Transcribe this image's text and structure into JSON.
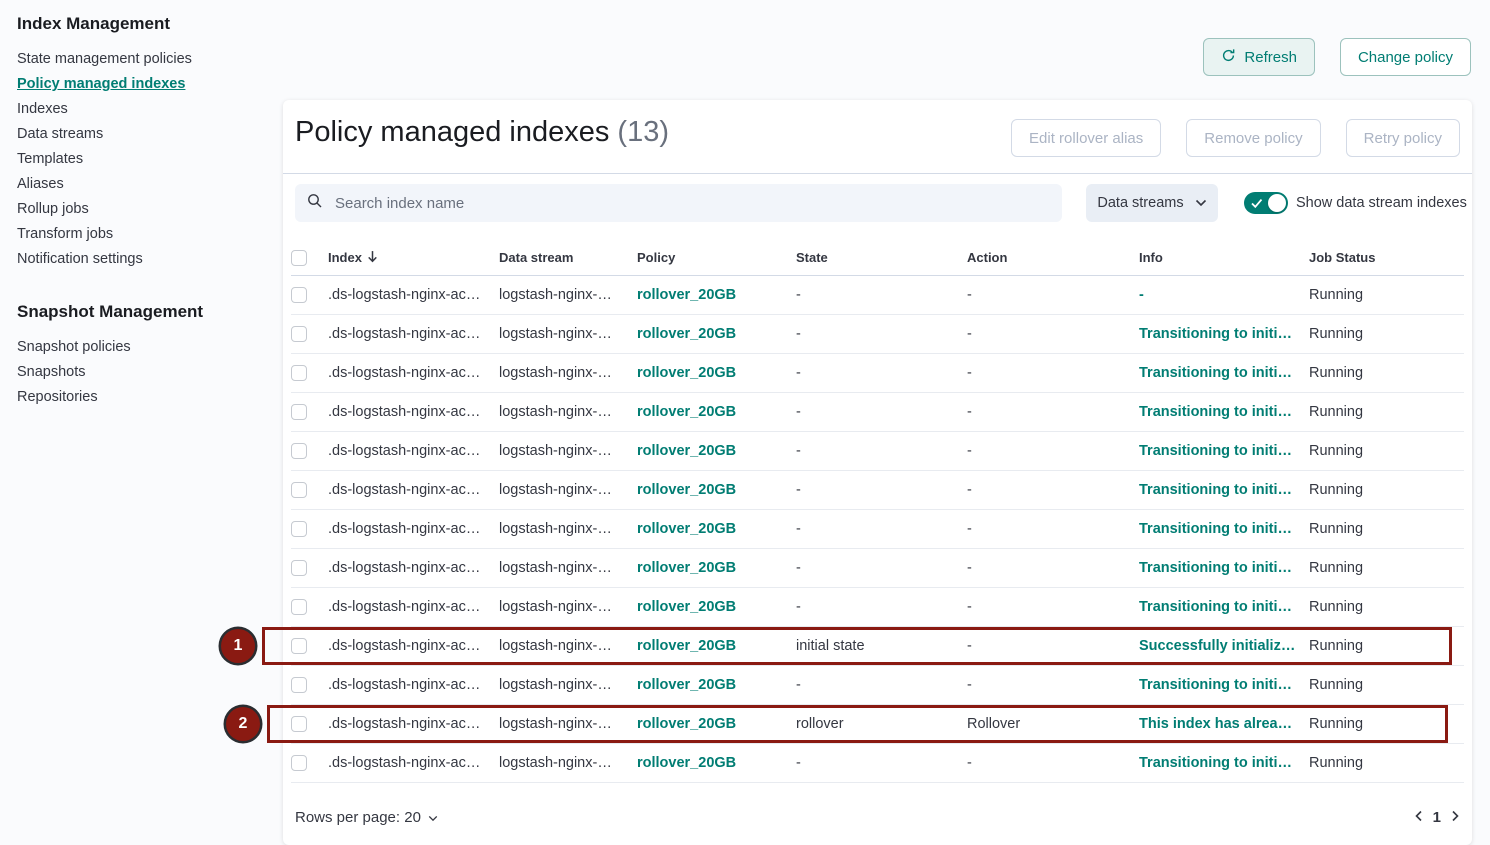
{
  "sidebar": {
    "section1_title": "Index Management",
    "section1_items": [
      "State management policies",
      "Policy managed indexes",
      "Indexes",
      "Data streams",
      "Templates",
      "Aliases",
      "Rollup jobs",
      "Transform jobs",
      "Notification settings"
    ],
    "active_item": "Policy managed indexes",
    "section2_title": "Snapshot Management",
    "section2_items": [
      "Snapshot policies",
      "Snapshots",
      "Repositories"
    ]
  },
  "top_actions": {
    "refresh_label": "Refresh",
    "change_policy_label": "Change policy"
  },
  "panel": {
    "title": "Policy managed indexes",
    "count": "(13)",
    "action_buttons": [
      "Edit rollover alias",
      "Remove policy",
      "Retry policy"
    ],
    "search_placeholder": "Search index name",
    "filter_dropdown_label": "Data streams",
    "toggle_label": "Show data stream indexes",
    "toggle_state": "on"
  },
  "table": {
    "columns": [
      "Index",
      "Data stream",
      "Policy",
      "State",
      "Action",
      "Info",
      "Job Status"
    ],
    "sorted_column": "Index",
    "sort_direction": "desc",
    "rows": [
      {
        "index": ".ds-logstash-nginx-ac…",
        "data_stream": "logstash-nginx-…",
        "policy": "rollover_20GB",
        "state": "-",
        "action": "-",
        "info": "-",
        "job_status": "Running"
      },
      {
        "index": ".ds-logstash-nginx-ac…",
        "data_stream": "logstash-nginx-…",
        "policy": "rollover_20GB",
        "state": "-",
        "action": "-",
        "info": "Transitioning to initi…",
        "job_status": "Running"
      },
      {
        "index": ".ds-logstash-nginx-ac…",
        "data_stream": "logstash-nginx-…",
        "policy": "rollover_20GB",
        "state": "-",
        "action": "-",
        "info": "Transitioning to initi…",
        "job_status": "Running"
      },
      {
        "index": ".ds-logstash-nginx-ac…",
        "data_stream": "logstash-nginx-…",
        "policy": "rollover_20GB",
        "state": "-",
        "action": "-",
        "info": "Transitioning to initi…",
        "job_status": "Running"
      },
      {
        "index": ".ds-logstash-nginx-ac…",
        "data_stream": "logstash-nginx-…",
        "policy": "rollover_20GB",
        "state": "-",
        "action": "-",
        "info": "Transitioning to initi…",
        "job_status": "Running"
      },
      {
        "index": ".ds-logstash-nginx-ac…",
        "data_stream": "logstash-nginx-…",
        "policy": "rollover_20GB",
        "state": "-",
        "action": "-",
        "info": "Transitioning to initi…",
        "job_status": "Running"
      },
      {
        "index": ".ds-logstash-nginx-ac…",
        "data_stream": "logstash-nginx-…",
        "policy": "rollover_20GB",
        "state": "-",
        "action": "-",
        "info": "Transitioning to initi…",
        "job_status": "Running"
      },
      {
        "index": ".ds-logstash-nginx-ac…",
        "data_stream": "logstash-nginx-…",
        "policy": "rollover_20GB",
        "state": "-",
        "action": "-",
        "info": "Transitioning to initi…",
        "job_status": "Running"
      },
      {
        "index": ".ds-logstash-nginx-ac…",
        "data_stream": "logstash-nginx-…",
        "policy": "rollover_20GB",
        "state": "-",
        "action": "-",
        "info": "Transitioning to initi…",
        "job_status": "Running"
      },
      {
        "index": ".ds-logstash-nginx-ac…",
        "data_stream": "logstash-nginx-…",
        "policy": "rollover_20GB",
        "state": "initial state",
        "action": "-",
        "info": "Successfully initializ…",
        "job_status": "Running"
      },
      {
        "index": ".ds-logstash-nginx-ac…",
        "data_stream": "logstash-nginx-…",
        "policy": "rollover_20GB",
        "state": "-",
        "action": "-",
        "info": "Transitioning to initi…",
        "job_status": "Running"
      },
      {
        "index": ".ds-logstash-nginx-ac…",
        "data_stream": "logstash-nginx-…",
        "policy": "rollover_20GB",
        "state": "rollover",
        "action": "Rollover",
        "info": "This index has alrea…",
        "job_status": "Running"
      },
      {
        "index": ".ds-logstash-nginx-ac…",
        "data_stream": "logstash-nginx-…",
        "policy": "rollover_20GB",
        "state": "-",
        "action": "-",
        "info": "Transitioning to initi…",
        "job_status": "Running"
      }
    ]
  },
  "pagination": {
    "rows_per_page_label": "Rows per page: 20",
    "current_page": "1"
  },
  "annotations": {
    "badge_1": "1",
    "badge_2": "2"
  },
  "icons": {
    "refresh": "circular-arrow",
    "search": "magnifier",
    "dropdown": "chevron-down",
    "sort": "arrow-down",
    "toggle_check": "checkmark",
    "rows_per_page": "chevron-down",
    "pager_prev": "chevron-left",
    "pager_next": "chevron-right"
  },
  "colors": {
    "accent_teal": "#017D73",
    "annotation_red": "#8A1A12",
    "text": "#343741",
    "subtle_text": "#69707D",
    "disabled_text": "#ABB4C4"
  }
}
